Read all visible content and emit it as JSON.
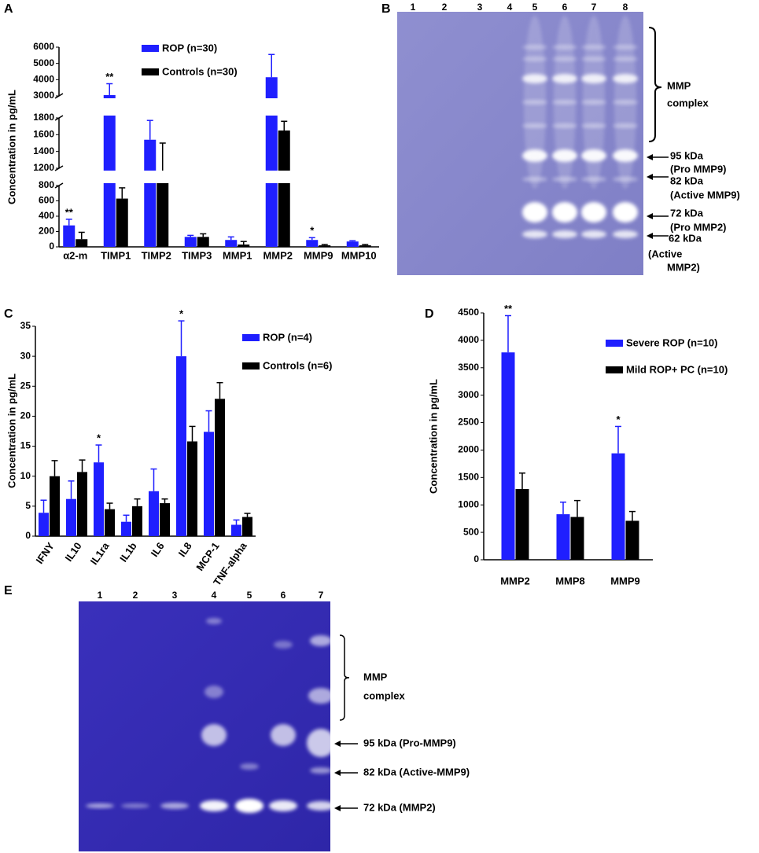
{
  "chart_data": [
    {
      "panel": "A",
      "type": "bar",
      "ylabel": "Concentration in pg/mL",
      "categories": [
        "α2-m",
        "TIMP1",
        "TIMP2",
        "TIMP3",
        "MMP1",
        "MMP2",
        "MMP9",
        "MMP10"
      ],
      "series": [
        {
          "name": "ROP (n=30)",
          "color": "#1f1fff",
          "values": [
            280,
            3050,
            1540,
            130,
            90,
            4150,
            90,
            70
          ],
          "errors": [
            80,
            700,
            230,
            20,
            40,
            1400,
            30,
            10
          ]
        },
        {
          "name": "Controls (n=30)",
          "color": "#000000",
          "values": [
            100,
            630,
            1120,
            130,
            30,
            1650,
            20,
            20
          ],
          "errors": [
            90,
            140,
            380,
            40,
            40,
            110,
            10,
            10
          ]
        }
      ],
      "significance": [
        "**",
        "**",
        null,
        null,
        null,
        null,
        "*",
        null
      ],
      "ylim": [
        0,
        6000
      ],
      "ybreaks": [
        [
          800,
          1200
        ],
        [
          1800,
          3000
        ]
      ],
      "yticks": [
        0,
        200,
        400,
        600,
        800,
        1200,
        1400,
        1600,
        1800,
        3000,
        4000,
        5000,
        6000
      ],
      "legend": "upper center"
    },
    {
      "panel": "C",
      "type": "bar",
      "ylabel": "Concentration in pg/mL",
      "categories": [
        "IFNY",
        "IL10",
        "IL1ra",
        "IL1b",
        "IL6",
        "IL8",
        "MCP-1",
        "TNF-alpha"
      ],
      "series": [
        {
          "name": "ROP (n=4)",
          "color": "#1f1fff",
          "values": [
            3.9,
            6.2,
            12.3,
            2.4,
            7.5,
            30,
            17.4,
            1.9
          ],
          "errors": [
            2.1,
            3,
            2.9,
            1.1,
            3.7,
            5.9,
            3.5,
            0.8
          ]
        },
        {
          "name": "Controls (n=6)",
          "color": "#000000",
          "values": [
            10,
            10.7,
            4.5,
            5,
            5.5,
            15.8,
            22.9,
            3.2
          ],
          "errors": [
            2.6,
            2,
            1,
            1.2,
            0.7,
            2.5,
            2.7,
            0.6
          ]
        }
      ],
      "significance": [
        null,
        null,
        "*",
        null,
        null,
        "*",
        null,
        null
      ],
      "ylim": [
        0,
        35
      ],
      "yticks": [
        0,
        5,
        10,
        15,
        20,
        25,
        30,
        35
      ],
      "legend": "upper right"
    },
    {
      "panel": "D",
      "type": "bar",
      "ylabel": "Concentration in pg/mL",
      "categories": [
        "MMP2",
        "MMP8",
        "MMP9"
      ],
      "series": [
        {
          "name": "Severe ROP (n=10)",
          "color": "#1f1fff",
          "values": [
            3780,
            830,
            1940
          ],
          "errors": [
            670,
            220,
            490
          ]
        },
        {
          "name": "Mild ROP+ PC (n=10)",
          "color": "#000000",
          "values": [
            1290,
            780,
            710
          ],
          "errors": [
            290,
            300,
            170
          ]
        }
      ],
      "significance": [
        "**",
        null,
        "*"
      ],
      "ylim": [
        0,
        4500
      ],
      "yticks": [
        0,
        500,
        1000,
        1500,
        2000,
        2500,
        3000,
        3500,
        4000,
        4500
      ],
      "legend": "upper right"
    }
  ],
  "gels": [
    {
      "panel": "B",
      "lanes": [
        "1",
        "2",
        "3",
        "4",
        "5",
        "6",
        "7",
        "8"
      ],
      "labels": [
        [
          "MMP",
          "complex"
        ],
        [
          "95 kDa",
          "(Pro MMP9)"
        ],
        [
          "82 kDa",
          "(Active MMP9)"
        ],
        [
          "72 kDa",
          "(Pro MMP2)"
        ],
        [
          "62 kDa",
          "(Active",
          "MMP2)"
        ]
      ]
    },
    {
      "panel": "E",
      "lanes": [
        "1",
        "2",
        "3",
        "4",
        "5",
        "6",
        "7"
      ],
      "labels": [
        [
          "MMP",
          "complex"
        ],
        [
          "95 kDa (Pro-MMP9)"
        ],
        [
          "82 kDa (Active-MMP9)"
        ],
        [
          "72 kDa (MMP2)"
        ]
      ]
    }
  ]
}
